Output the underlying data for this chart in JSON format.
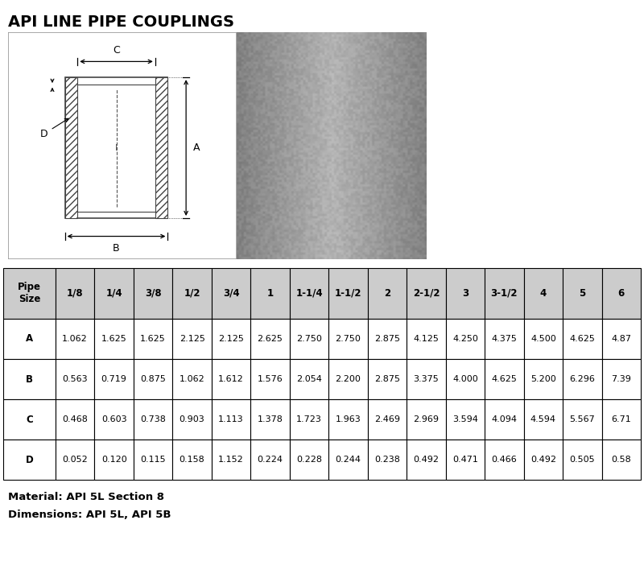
{
  "title": "API LINE PIPE COUPLINGS",
  "col_headers": [
    "Pipe\nSize",
    "1/8",
    "1/4",
    "3/8",
    "1/2",
    "3/4",
    "1",
    "1-1/4",
    "1-1/2",
    "2",
    "2-1/2",
    "3",
    "3-1/2",
    "4",
    "5",
    "6"
  ],
  "row_labels": [
    "A",
    "B",
    "C",
    "D"
  ],
  "table_data": [
    [
      "1.062",
      "1.625",
      "1.625",
      "2.125",
      "2.125",
      "2.625",
      "2.750",
      "2.750",
      "2.875",
      "4.125",
      "4.250",
      "4.375",
      "4.500",
      "4.625",
      "4.87"
    ],
    [
      "0.563",
      "0.719",
      "0.875",
      "1.062",
      "1.612",
      "1.576",
      "2.054",
      "2.200",
      "2.875",
      "3.375",
      "4.000",
      "4.625",
      "5.200",
      "6.296",
      "7.39"
    ],
    [
      "0.468",
      "0.603",
      "0.738",
      "0.903",
      "1.113",
      "1.378",
      "1.723",
      "1.963",
      "2.469",
      "2.969",
      "3.594",
      "4.094",
      "4.594",
      "5.567",
      "6.71"
    ],
    [
      "0.052",
      "0.120",
      "0.115",
      "0.158",
      "1.152",
      "0.224",
      "0.228",
      "0.244",
      "0.238",
      "0.492",
      "0.471",
      "0.466",
      "0.492",
      "0.505",
      "0.58"
    ]
  ],
  "footer_lines": [
    "Material: API 5L Section 8",
    "Dimensions: API 5L, API 5B"
  ],
  "bg_color": "#ffffff",
  "header_bg": "#cccccc",
  "border_color": "#000000",
  "text_color": "#000000",
  "table_font_size": 8.0,
  "header_font_size": 8.5,
  "title_font_size": 14,
  "diag_bg": "#f8f8f8",
  "photo_bg": "#a8a8a8"
}
